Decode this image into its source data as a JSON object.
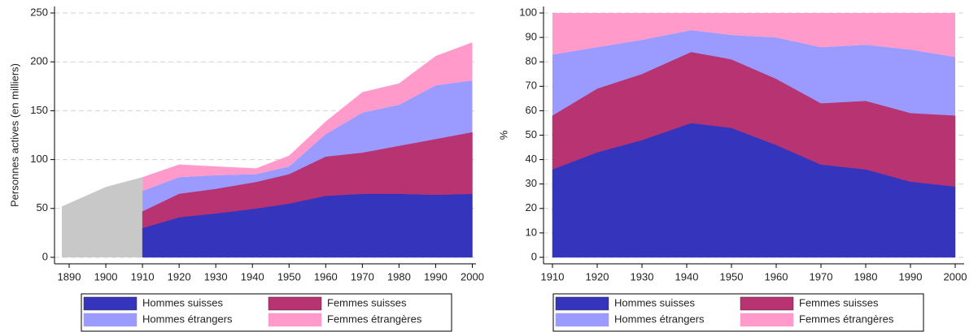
{
  "chart_data": [
    {
      "type": "area",
      "stacked": true,
      "ylabel": "Personnes actives (en milliers)",
      "xlim": [
        1886,
        2001
      ],
      "ylim": [
        0,
        250
      ],
      "xticks": [
        1890,
        1900,
        1910,
        1920,
        1930,
        1940,
        1950,
        1960,
        1970,
        1980,
        1990,
        2000
      ],
      "yticks": [
        0,
        50,
        100,
        150,
        200,
        250
      ],
      "grid": true,
      "background_series": {
        "color": "#c8c8c8",
        "x": [
          1888,
          1900,
          1910
        ],
        "values": [
          52,
          72,
          82
        ]
      },
      "x": [
        1910,
        1920,
        1930,
        1941,
        1950,
        1960,
        1970,
        1980,
        1990,
        2000
      ],
      "series": [
        {
          "name": "Hommes suisses",
          "color": "#3434bc",
          "values": [
            30,
            41,
            45,
            50,
            55,
            63,
            65,
            65,
            64,
            65
          ]
        },
        {
          "name": "Femmes suisses",
          "color": "#b73372",
          "values": [
            17,
            24,
            25,
            27,
            30,
            40,
            42,
            49,
            57,
            63
          ]
        },
        {
          "name": "Hommes étrangers",
          "color": "#9a9aff",
          "values": [
            21,
            17,
            14,
            8,
            8,
            23,
            41,
            42,
            55,
            53
          ]
        },
        {
          "name": "Femmes étrangères",
          "color": "#ff9acb",
          "values": [
            14,
            13,
            9,
            6,
            11,
            13,
            21,
            22,
            30,
            39
          ]
        }
      ]
    },
    {
      "type": "area",
      "stacked": true,
      "ylabel": "%",
      "xlim": [
        1908,
        2002
      ],
      "ylim": [
        0,
        100
      ],
      "xticks": [
        1910,
        1920,
        1930,
        1940,
        1950,
        1960,
        1970,
        1980,
        1990,
        2000
      ],
      "yticks": [
        0,
        10,
        20,
        30,
        40,
        50,
        60,
        70,
        80,
        90,
        100
      ],
      "grid": true,
      "x": [
        1910,
        1920,
        1930,
        1941,
        1950,
        1960,
        1970,
        1980,
        1990,
        2000
      ],
      "series": [
        {
          "name": "Hommes suisses",
          "color": "#3434bc",
          "values": [
            36,
            43,
            48,
            55,
            53,
            46,
            38,
            36,
            31,
            29
          ]
        },
        {
          "name": "Femmes suisses",
          "color": "#b73372",
          "values": [
            22,
            26,
            27,
            29,
            28,
            27,
            25,
            28,
            28,
            29
          ]
        },
        {
          "name": "Hommes étrangers",
          "color": "#9a9aff",
          "values": [
            25,
            17,
            14,
            9,
            10,
            17,
            23,
            23,
            26,
            24
          ]
        },
        {
          "name": "Femmes étrangères",
          "color": "#ff9acb",
          "values": [
            17,
            14,
            11,
            7,
            9,
            10,
            14,
            13,
            15,
            18
          ]
        }
      ]
    }
  ]
}
